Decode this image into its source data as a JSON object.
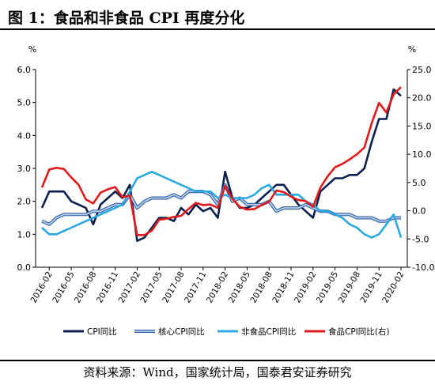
{
  "figure": {
    "title": "图 1：食品和非食品 CPI 再度分化",
    "source": "资料来源：Wind，国家统计局，国泰君安证券研究"
  },
  "chart_data": {
    "type": "line",
    "left_axis": {
      "unit": "%",
      "ylim": [
        0,
        6
      ],
      "ticks": [
        "0.0",
        "1.0",
        "2.0",
        "3.0",
        "4.0",
        "5.0",
        "6.0"
      ]
    },
    "right_axis": {
      "unit": "%",
      "ylim": [
        -10,
        25
      ],
      "ticks": [
        "-10.0",
        "-5.0",
        "0.0",
        "5.0",
        "10.0",
        "15.0",
        "20.0",
        "25.0"
      ]
    },
    "x_tick_labels": [
      "2016-02",
      "2016-05",
      "2016-08",
      "2016-11",
      "2017-02",
      "2017-05",
      "2017-08",
      "2017-11",
      "2018-02",
      "2018-05",
      "2018-08",
      "2018-11",
      "2019-02",
      "2019-05",
      "2019-08",
      "2019-11",
      "2020-02"
    ],
    "months": [
      "2016-01",
      "2016-02",
      "2016-03",
      "2016-04",
      "2016-05",
      "2016-06",
      "2016-07",
      "2016-08",
      "2016-09",
      "2016-10",
      "2016-11",
      "2016-12",
      "2017-01",
      "2017-02",
      "2017-03",
      "2017-04",
      "2017-05",
      "2017-06",
      "2017-07",
      "2017-08",
      "2017-09",
      "2017-10",
      "2017-11",
      "2017-12",
      "2018-01",
      "2018-02",
      "2018-03",
      "2018-04",
      "2018-05",
      "2018-06",
      "2018-07",
      "2018-08",
      "2018-09",
      "2018-10",
      "2018-11",
      "2018-12",
      "2019-01",
      "2019-02",
      "2019-03",
      "2019-04",
      "2019-05",
      "2019-06",
      "2019-07",
      "2019-08",
      "2019-09",
      "2019-10",
      "2019-11",
      "2019-12",
      "2020-01",
      "2020-02"
    ],
    "series": [
      {
        "name": "CPI同比",
        "axis": "left",
        "color": "#0b1f4f",
        "width": 2.6,
        "values": [
          1.8,
          2.3,
          2.3,
          2.3,
          2.0,
          1.9,
          1.8,
          1.3,
          1.9,
          2.1,
          2.3,
          2.1,
          2.5,
          0.8,
          0.9,
          1.2,
          1.5,
          1.5,
          1.4,
          1.8,
          1.6,
          1.9,
          1.7,
          1.8,
          1.5,
          2.9,
          2.1,
          1.8,
          1.8,
          1.9,
          2.1,
          2.3,
          2.5,
          2.5,
          2.2,
          1.9,
          1.7,
          1.5,
          2.3,
          2.5,
          2.7,
          2.7,
          2.8,
          2.8,
          3.0,
          3.8,
          4.5,
          4.5,
          5.4,
          5.2
        ]
      },
      {
        "name": "核心CPI同比",
        "axis": "left",
        "color": "#8fb3da",
        "width": 2.6,
        "values": [
          1.4,
          1.3,
          1.5,
          1.6,
          1.6,
          1.6,
          1.6,
          1.7,
          1.7,
          1.8,
          1.9,
          1.9,
          2.2,
          1.8,
          2.0,
          2.1,
          2.1,
          2.1,
          2.2,
          2.1,
          2.3,
          2.3,
          2.3,
          2.2,
          1.9,
          2.5,
          2.0,
          2.1,
          1.9,
          1.9,
          1.9,
          2.0,
          1.7,
          1.8,
          1.8,
          1.8,
          1.9,
          1.8,
          1.7,
          1.7,
          1.6,
          1.6,
          1.6,
          1.5,
          1.5,
          1.5,
          1.4,
          1.4,
          1.5,
          1.5
        ]
      },
      {
        "name": "非食品CPI同比",
        "axis": "left",
        "color": "#2aa8e0",
        "width": 2.6,
        "values": [
          1.2,
          1.0,
          1.0,
          1.1,
          1.2,
          1.3,
          1.4,
          1.5,
          1.6,
          1.7,
          1.8,
          1.9,
          2.3,
          2.7,
          2.8,
          2.9,
          2.8,
          2.7,
          2.6,
          2.5,
          2.4,
          2.3,
          2.3,
          2.3,
          2.1,
          2.2,
          2.1,
          2.1,
          2.1,
          2.2,
          2.4,
          2.5,
          2.2,
          2.2,
          2.2,
          2.2,
          2.0,
          1.9,
          1.7,
          1.7,
          1.6,
          1.5,
          1.3,
          1.2,
          1.0,
          0.9,
          1.0,
          1.3,
          1.6,
          0.9
        ]
      },
      {
        "name": "食品CPI同比(右)",
        "axis": "right",
        "color": "#e01a1a",
        "width": 2.6,
        "values": [
          4.1,
          7.3,
          7.6,
          7.4,
          5.9,
          4.6,
          2.0,
          1.3,
          3.2,
          3.8,
          4.2,
          2.4,
          2.7,
          -4.3,
          -4.3,
          -3.5,
          -1.6,
          -1.4,
          -1.1,
          -0.9,
          0.3,
          1.4,
          1.0,
          1.1,
          0.5,
          4.4,
          2.1,
          0.7,
          0.2,
          0.3,
          1.0,
          1.6,
          3.6,
          3.3,
          2.5,
          1.9,
          1.7,
          0.7,
          4.1,
          6.1,
          7.7,
          8.3,
          9.1,
          10.0,
          11.2,
          15.5,
          19.1,
          17.4,
          20.6,
          21.9
        ]
      }
    ],
    "legend_position": "bottom",
    "grid": false
  }
}
